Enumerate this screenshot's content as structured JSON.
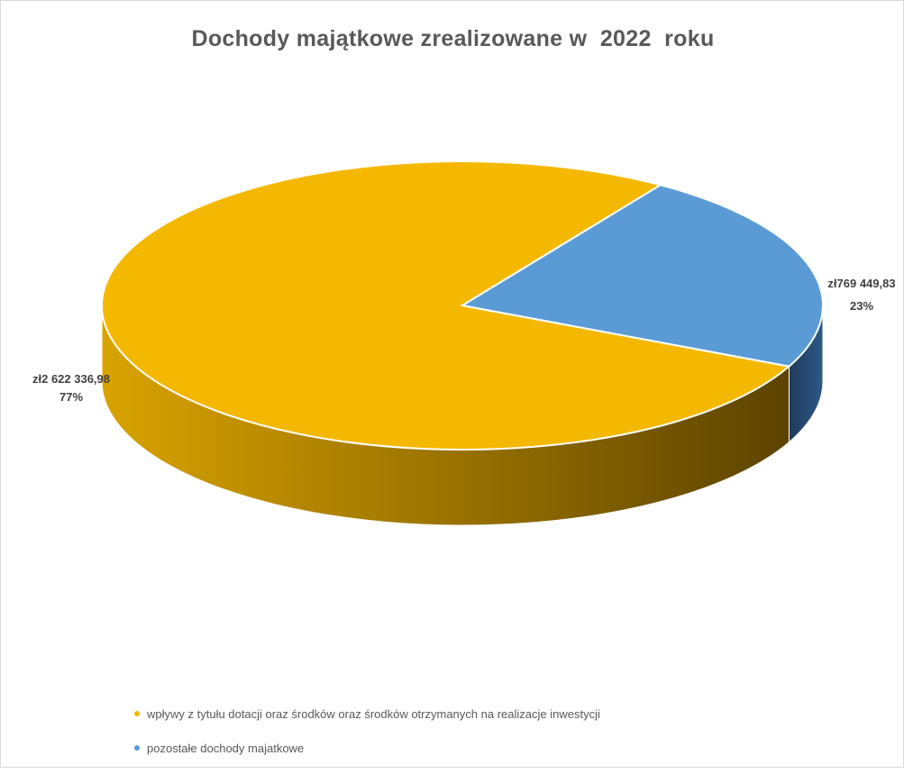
{
  "chart_data": {
    "type": "pie",
    "style": "3d",
    "title": "Dochody majątkowe zrealizowane w  2022  roku",
    "series": [
      {
        "name": "wpływy z tytułu dotacji oraz środków oraz środków otrzymanych na realizacje inwestycji",
        "value": 2622336.98,
        "value_label": "zł2 622 336,98",
        "percent": 77,
        "percent_label": "77%",
        "color": "#f5b800",
        "side_dark": "#5c4300",
        "side_light": "#d9a300"
      },
      {
        "name": "pozostałe dochody majatkowe",
        "value": 769449.83,
        "value_label": "zł769 449,83",
        "percent": 23,
        "percent_label": "23%",
        "color": "#5b9bd5",
        "side_dark": "#1f3a5c",
        "side_light": "#2e5a88"
      }
    ],
    "legend_position": "bottom"
  }
}
